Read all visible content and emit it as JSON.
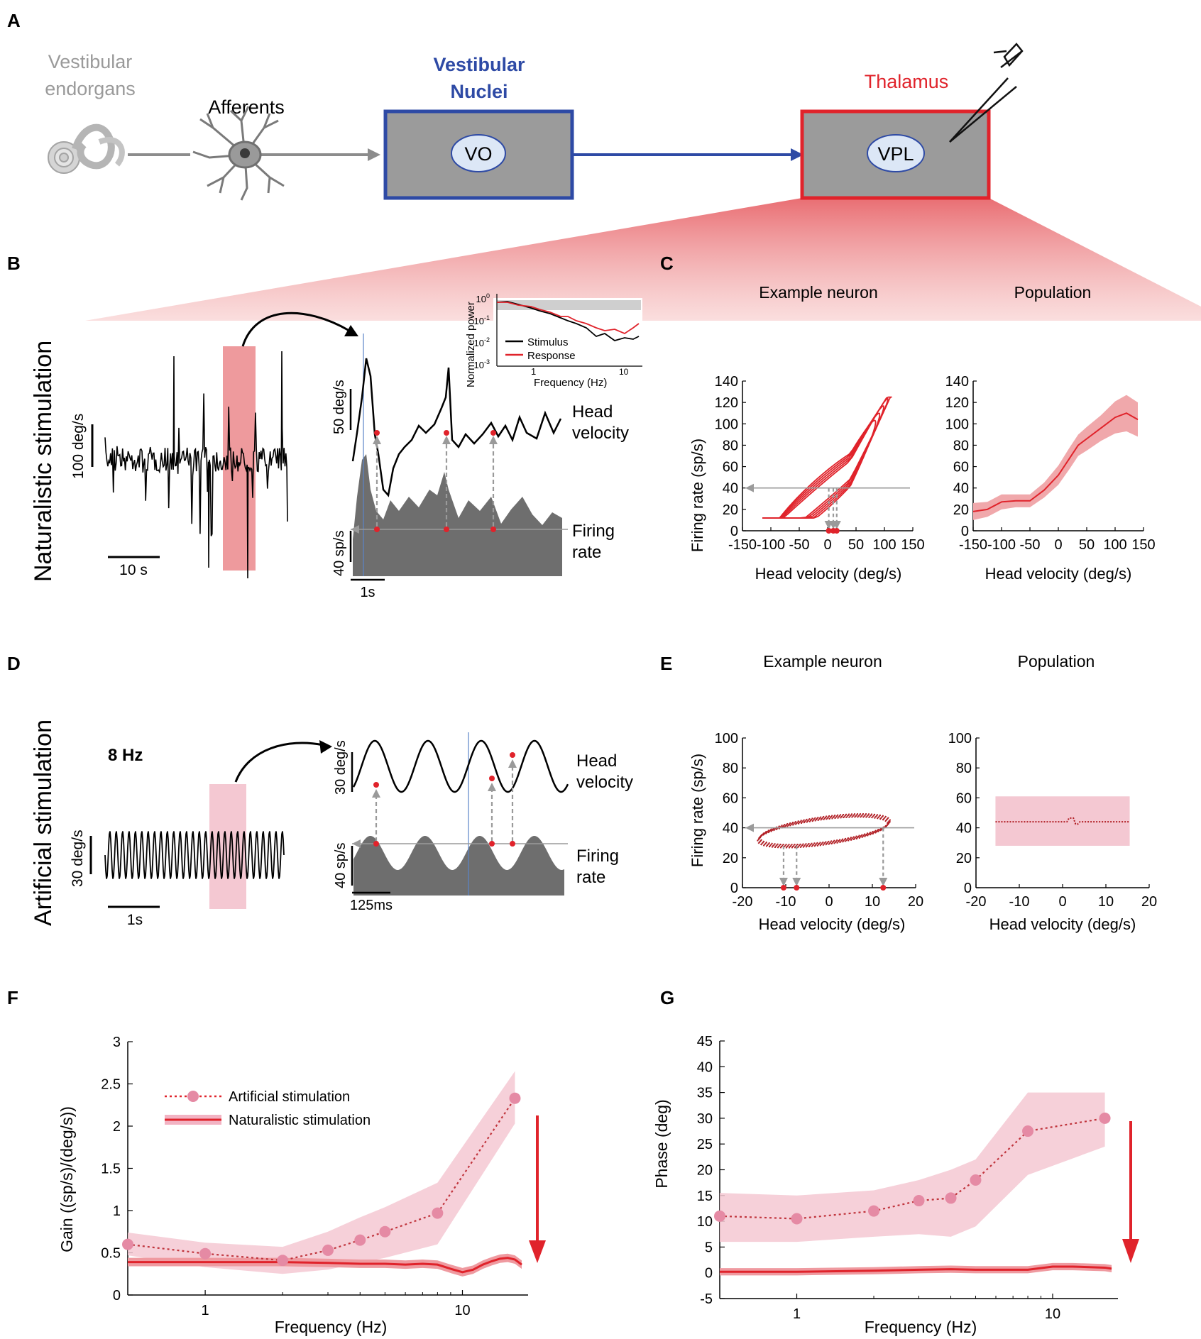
{
  "panels": {
    "A": "A",
    "B": "B",
    "C": "C",
    "D": "D",
    "E": "E",
    "F": "F",
    "G": "G"
  },
  "pathway": {
    "endorgans": [
      "Vestibular",
      "endorgans"
    ],
    "afferents": "Afferents",
    "nuclei_title": [
      "Vestibular",
      "Nuclei"
    ],
    "nuclei_label": "VO",
    "thalamus_title": "Thalamus",
    "thalamus_label": "VPL"
  },
  "colors": {
    "red": "#e0232b",
    "blue": "#2e4aa5",
    "gray": "#8c8c8c",
    "pink": "#f2b3c3",
    "pink_dot": "#e58aa4",
    "dark_gray": "#6e6e6e"
  },
  "panel_b": {
    "side_label": "Naturalistic stimulation",
    "scale_left": "100 deg/s",
    "time_left": "10 s",
    "scale_right_top": "50 deg/s",
    "scale_right_bottom": "40 sp/s",
    "time_right": "1s",
    "head_velocity": [
      "Head",
      "velocity"
    ],
    "firing_rate": [
      "Firing",
      "rate"
    ],
    "inset": {
      "ylabel": "Normalized power",
      "xlabel": "Frequency (Hz)",
      "yticks": [
        {
          "m": "10",
          "e": "0"
        },
        {
          "m": "10",
          "e": "-1"
        },
        {
          "m": "10",
          "e": "-2"
        },
        {
          "m": "10",
          "e": "-3"
        }
      ],
      "xticks": [
        {
          "m": "1",
          "e": ""
        },
        {
          "m": "",
          "e": "10"
        }
      ],
      "legend": [
        "Stimulus",
        "Response"
      ]
    }
  },
  "panel_c": {
    "example_title": "Example neuron",
    "population_title": "Population",
    "ylabel": "Firing rate (sp/s)",
    "xlabel": "Head velocity (deg/s)",
    "yticks": [
      "140",
      "120",
      "100",
      "80",
      "60",
      "40",
      "20",
      "0"
    ],
    "xticks_example": [
      "-150",
      "-100",
      "-50",
      "0",
      "50",
      "100",
      "150"
    ],
    "xticks_population": [
      "-150",
      "-100",
      "-50",
      "0",
      "50",
      "100",
      "150"
    ],
    "population_curve": [
      [
        -150,
        18
      ],
      [
        -125,
        20
      ],
      [
        -100,
        27
      ],
      [
        -75,
        28
      ],
      [
        -50,
        28
      ],
      [
        -25,
        38
      ],
      [
        0,
        52
      ],
      [
        20,
        68
      ],
      [
        35,
        80
      ],
      [
        50,
        86
      ],
      [
        75,
        96
      ],
      [
        100,
        106
      ],
      [
        120,
        110
      ],
      [
        140,
        104
      ]
    ],
    "population_band": [
      8,
      7,
      7,
      6,
      6,
      7,
      9,
      10,
      10,
      11,
      12,
      15,
      17,
      16
    ]
  },
  "panel_d": {
    "side_label": "Artificial stimulation",
    "freq": "8 Hz",
    "scale_left": "30 deg/s",
    "time_left": "1s",
    "scale_right_top": "30 deg/s",
    "scale_right_bottom": "40 sp/s",
    "time_right": "125ms",
    "head_velocity": [
      "Head",
      "velocity"
    ],
    "firing_rate": [
      "Firing",
      "rate"
    ]
  },
  "panel_e": {
    "example_title": "Example neuron",
    "population_title": "Population",
    "ylabel": "Firing rate (sp/s)",
    "xlabel": "Head velocity (deg/s)",
    "yticks": [
      "100",
      "80",
      "60",
      "40",
      "20",
      "0"
    ],
    "xticks": [
      "-20",
      "-10",
      "0",
      "10",
      "20"
    ],
    "population_mean": 44,
    "population_band_low": 28,
    "population_band_high": 61
  },
  "chart_data": [
    {
      "id": "F",
      "type": "line",
      "xscale": "log",
      "xlim": [
        0.5,
        18
      ],
      "ylim": [
        0,
        3
      ],
      "xlabel": "Frequency (Hz)",
      "ylabel": "Gain ((sp/s)/(deg/s))",
      "xticks": [
        "1",
        "10"
      ],
      "yticks": [
        "0",
        "0.5",
        "1",
        "1.5",
        "2",
        "2.5",
        "3"
      ],
      "legend": [
        "Artificial stimulation",
        "Naturalistic stimulation"
      ],
      "series": [
        {
          "name": "Artificial stimulation",
          "x": [
            0.5,
            1,
            2,
            3,
            4,
            5,
            8,
            16
          ],
          "y": [
            0.6,
            0.49,
            0.41,
            0.53,
            0.65,
            0.75,
            0.97,
            2.33
          ],
          "band_low": [
            0.47,
            0.33,
            0.25,
            0.3,
            0.38,
            0.44,
            0.6,
            2.03
          ],
          "band_high": [
            0.74,
            0.62,
            0.57,
            0.75,
            0.92,
            1.04,
            1.33,
            2.65
          ]
        },
        {
          "name": "Naturalistic stimulation",
          "x": [
            0.5,
            1,
            2,
            3,
            4,
            5,
            6,
            7,
            8,
            9,
            10,
            11,
            12,
            13,
            14,
            15,
            16,
            17
          ],
          "y": [
            0.39,
            0.39,
            0.39,
            0.38,
            0.37,
            0.37,
            0.36,
            0.37,
            0.36,
            0.31,
            0.27,
            0.3,
            0.36,
            0.4,
            0.43,
            0.44,
            0.42,
            0.36
          ],
          "band": 0.05
        }
      ]
    },
    {
      "id": "G",
      "type": "line",
      "xscale": "log",
      "xlim": [
        0.5,
        18
      ],
      "ylim": [
        -5,
        45
      ],
      "xlabel": "Frequency (Hz)",
      "ylabel": "Phase (deg)",
      "xticks": [
        "1",
        "10"
      ],
      "yticks": [
        "-5",
        "0",
        "5",
        "10",
        "15",
        "20",
        "25",
        "30",
        "35",
        "40",
        "45"
      ],
      "series": [
        {
          "name": "Artificial stimulation",
          "x": [
            0.5,
            1,
            2,
            3,
            4,
            5,
            8,
            16
          ],
          "y": [
            11,
            10.5,
            12,
            14,
            14.5,
            18,
            27.5,
            30
          ],
          "band_low": [
            6,
            6,
            7,
            7.5,
            7,
            9,
            19,
            24.5
          ],
          "band_high": [
            15.5,
            15,
            16,
            18,
            20,
            22,
            35,
            35
          ]
        },
        {
          "name": "Naturalistic stimulation",
          "x": [
            0.5,
            1,
            2,
            3,
            4,
            5,
            8,
            10,
            12,
            16,
            17
          ],
          "y": [
            0.2,
            0.2,
            0.4,
            0.6,
            0.7,
            0.6,
            0.6,
            1.2,
            1.2,
            1.0,
            0.8
          ],
          "band": 0.7
        }
      ]
    }
  ]
}
